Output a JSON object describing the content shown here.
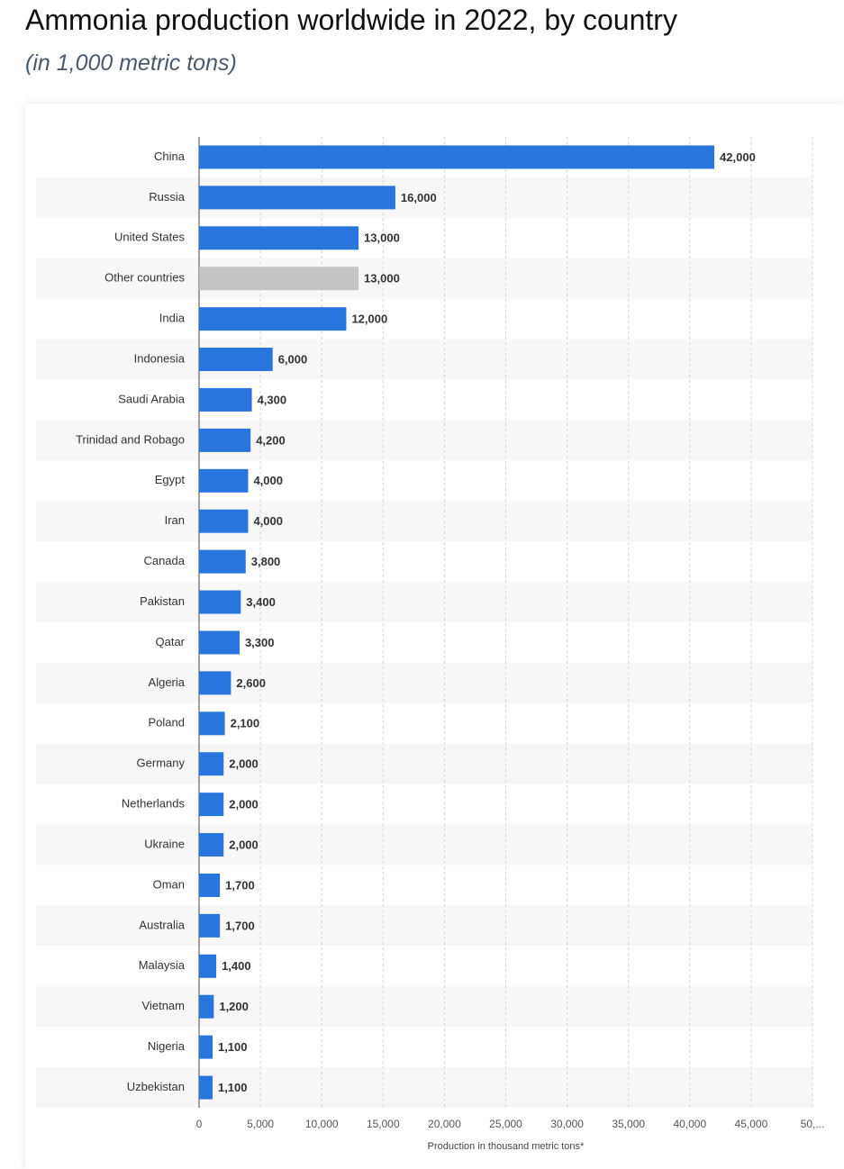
{
  "chart_data": {
    "type": "bar",
    "orientation": "horizontal",
    "title": "Ammonia production worldwide in 2022, by country",
    "subtitle": "(in 1,000 metric tons)",
    "x_label": "Production in thousand metric tons*",
    "categories": [
      "China",
      "Russia",
      "United States",
      "Other countries",
      "India",
      "Indonesia",
      "Saudi Arabia",
      "Trinidad and Robago",
      "Egypt",
      "Iran",
      "Canada",
      "Pakistan",
      "Qatar",
      "Algeria",
      "Poland",
      "Germany",
      "Netherlands",
      "Ukraine",
      "Oman",
      "Australia",
      "Malaysia",
      "Vietnam",
      "Nigeria",
      "Uzbekistan"
    ],
    "values": [
      42000,
      16000,
      13000,
      13000,
      12000,
      6000,
      4300,
      4200,
      4000,
      4000,
      3800,
      3400,
      3300,
      2600,
      2100,
      2000,
      2000,
      2000,
      1700,
      1700,
      1400,
      1200,
      1100,
      1100
    ],
    "value_labels": [
      "42,000",
      "16,000",
      "13,000",
      "13,000",
      "12,000",
      "6,000",
      "4,300",
      "4,200",
      "4,000",
      "4,000",
      "3,800",
      "3,400",
      "3,300",
      "2,600",
      "2,100",
      "2,000",
      "2,000",
      "2,000",
      "1,700",
      "1,700",
      "1,400",
      "1,200",
      "1,100",
      "1,100"
    ],
    "colors": [
      "#2876dd",
      "#2876dd",
      "#2876dd",
      "#c4c4c4",
      "#2876dd",
      "#2876dd",
      "#2876dd",
      "#2876dd",
      "#2876dd",
      "#2876dd",
      "#2876dd",
      "#2876dd",
      "#2876dd",
      "#2876dd",
      "#2876dd",
      "#2876dd",
      "#2876dd",
      "#2876dd",
      "#2876dd",
      "#2876dd",
      "#2876dd",
      "#2876dd",
      "#2876dd",
      "#2876dd"
    ],
    "xlim": [
      0,
      50000
    ],
    "xticks": [
      0,
      {
        "value": 5000,
        "label": "5,000"
      },
      {
        "value": 10000,
        "label": "10,000"
      },
      {
        "value": 15000,
        "label": "15,000"
      },
      {
        "value": 20000,
        "label": "20,000"
      },
      {
        "value": 25000,
        "label": "25,000"
      },
      {
        "value": 30000,
        "label": "30,000"
      },
      {
        "value": 35000,
        "label": "35,000"
      },
      {
        "value": 40000,
        "label": "40,000"
      },
      {
        "value": 45000,
        "label": "45,000"
      },
      {
        "value": 50000,
        "label": "50,..."
      }
    ],
    "grid": true
  }
}
